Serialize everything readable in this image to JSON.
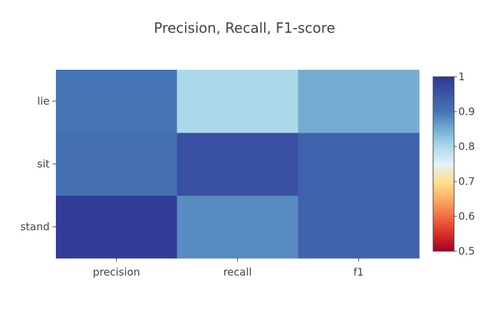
{
  "chart_data": {
    "type": "heatmap",
    "title": "Precision, Recall, F1-score",
    "x_categories": [
      "precision",
      "recall",
      "f1"
    ],
    "y_categories": [
      "stand",
      "sit",
      "lie"
    ],
    "z": [
      [
        0.99,
        0.88,
        0.93
      ],
      [
        0.91,
        0.96,
        0.93
      ],
      [
        0.9,
        0.8,
        0.85
      ]
    ],
    "colorscale": {
      "name": "RdYlBu",
      "min": 0.5,
      "max": 1,
      "stops": [
        [
          0.0,
          "#a50026"
        ],
        [
          0.1,
          "#d73027"
        ],
        [
          0.2,
          "#f46d43"
        ],
        [
          0.3,
          "#fdae61"
        ],
        [
          0.4,
          "#fee090"
        ],
        [
          0.5,
          "#e0f3f8"
        ],
        [
          0.6,
          "#abd9e9"
        ],
        [
          0.7,
          "#74add1"
        ],
        [
          0.8,
          "#4575b4"
        ],
        [
          1.0,
          "#313695"
        ]
      ],
      "tick_labels": [
        "0.5",
        "0.6",
        "0.7",
        "0.8",
        "0.9",
        "1"
      ]
    },
    "grid": false
  }
}
